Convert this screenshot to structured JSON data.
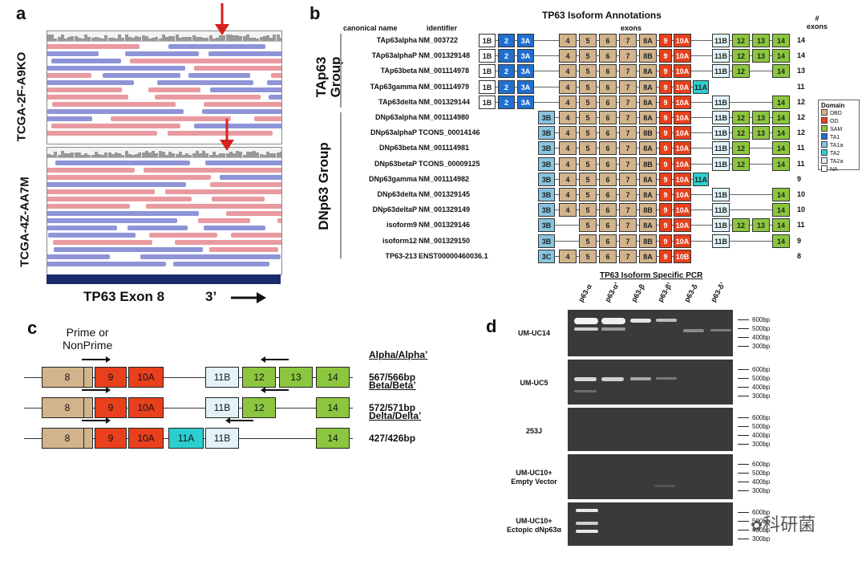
{
  "panels": {
    "a": "a",
    "b": "b",
    "c": "c",
    "d": "d"
  },
  "panel_a": {
    "sample1": "TCGA-2F-A9KO",
    "sample2": "TCGA-4Z-AA7M",
    "track_label": "TP63 Exon 8",
    "direction": "3’",
    "arrow_color": "#d62020"
  },
  "panel_b": {
    "title": "TP63 Isoform Annotations",
    "col_name": "canonical name",
    "col_id": "identifier",
    "col_exons": "exons",
    "col_count": "#\nexons",
    "group1": "TAp63\nGroup",
    "group2": "DNp63 Group",
    "rows": [
      {
        "name": "TAp63alpha",
        "id": "NM_003722",
        "exons": [
          "1B",
          "2",
          "3A",
          "4",
          "5",
          "6",
          "7",
          "8A",
          "9",
          "10A",
          "11B",
          "12",
          "13",
          "14"
        ],
        "n": "14"
      },
      {
        "name": "TAp63alphaP",
        "id": "NM_001329148",
        "exons": [
          "1B",
          "2",
          "3A",
          "4",
          "5",
          "6",
          "7",
          "8B",
          "9",
          "10A",
          "11B",
          "12",
          "13",
          "14"
        ],
        "n": "14"
      },
      {
        "name": "TAp63beta",
        "id": "NM_001114978",
        "exons": [
          "1B",
          "2",
          "3A",
          "4",
          "5",
          "6",
          "7",
          "8A",
          "9",
          "10A",
          "11B",
          "12",
          "14"
        ],
        "n": "13"
      },
      {
        "name": "TAp63gamma",
        "id": "NM_001114979",
        "exons": [
          "1B",
          "2",
          "3A",
          "4",
          "5",
          "6",
          "7",
          "8A",
          "9",
          "10A",
          "11A"
        ],
        "n": "11"
      },
      {
        "name": "TAp63delta",
        "id": "NM_001329144",
        "exons": [
          "1B",
          "2",
          "3A",
          "4",
          "5",
          "6",
          "7",
          "8A",
          "9",
          "10A",
          "11B",
          "14"
        ],
        "n": "12"
      },
      {
        "name": "DNp63alpha",
        "id": "NM_001114980",
        "exons": [
          "3B",
          "4",
          "5",
          "6",
          "7",
          "8A",
          "9",
          "10A",
          "11B",
          "12",
          "13",
          "14"
        ],
        "n": "12"
      },
      {
        "name": "DNp63alphaP",
        "id": "TCONS_00014146",
        "exons": [
          "3B",
          "4",
          "5",
          "6",
          "7",
          "8B",
          "9",
          "10A",
          "11B",
          "12",
          "13",
          "14"
        ],
        "n": "12"
      },
      {
        "name": "DNp63beta",
        "id": "NM_001114981",
        "exons": [
          "3B",
          "4",
          "5",
          "6",
          "7",
          "8A",
          "9",
          "10A",
          "11B",
          "12",
          "14"
        ],
        "n": "11"
      },
      {
        "name": "DNp63betaP",
        "id": "TCONS_00009125",
        "exons": [
          "3B",
          "4",
          "5",
          "6",
          "7",
          "8B",
          "9",
          "10A",
          "11B",
          "12",
          "14"
        ],
        "n": "11"
      },
      {
        "name": "DNp63gamma",
        "id": "NM_001114982",
        "exons": [
          "3B",
          "4",
          "5",
          "6",
          "7",
          "8A",
          "9",
          "10A",
          "11A"
        ],
        "n": "9"
      },
      {
        "name": "DNp63delta",
        "id": "NM_001329145",
        "exons": [
          "3B",
          "4",
          "5",
          "6",
          "7",
          "8A",
          "9",
          "10A",
          "11B",
          "14"
        ],
        "n": "10"
      },
      {
        "name": "DNp63deltaP",
        "id": "NM_001329149",
        "exons": [
          "3B",
          "4",
          "5",
          "6",
          "7",
          "8B",
          "9",
          "10A",
          "11B",
          "14"
        ],
        "n": "10"
      },
      {
        "name": "isoform9",
        "id": "NM_001329146",
        "exons": [
          "3B",
          "5",
          "6",
          "7",
          "8A",
          "9",
          "10A",
          "11B",
          "12",
          "13",
          "14"
        ],
        "n": "11"
      },
      {
        "name": "isoform12",
        "id": "NM_001329150",
        "exons": [
          "3B",
          "5",
          "6",
          "7",
          "8B",
          "9",
          "10A",
          "11B",
          "14"
        ],
        "n": "9"
      },
      {
        "name": "TP63-213",
        "id": "ENST00000460036.1",
        "exons": [
          "3C",
          "4",
          "5",
          "6",
          "7",
          "8A",
          "9",
          "10B"
        ],
        "n": "8"
      }
    ],
    "legend_title": "Domain",
    "legend": [
      {
        "label": "DBD",
        "color": "#d2b48c"
      },
      {
        "label": "OD",
        "color": "#e8401c"
      },
      {
        "label": "SAM",
        "color": "#8cc63f"
      },
      {
        "label": "TA1",
        "color": "#1f6fd0"
      },
      {
        "label": "TA1a",
        "color": "#87c4e0"
      },
      {
        "label": "TA2",
        "color": "#2ccfd0"
      },
      {
        "label": "TA2a",
        "color": "#e2f4f8"
      },
      {
        "label": "NA",
        "color": "#ffffff"
      }
    ]
  },
  "panel_c": {
    "prime": "Prime or\nNonPrime",
    "rows": [
      {
        "title": "Alpha/Alpha’",
        "size": "567/566bp",
        "exons": [
          "8",
          "9",
          "10A",
          "11B",
          "12",
          "13",
          "14"
        ]
      },
      {
        "title": "Beta/Beta’",
        "size": "572/571bp",
        "exons": [
          "8",
          "9",
          "10A",
          "11B",
          "12",
          "14"
        ]
      },
      {
        "title": "Delta/Delta’",
        "size": "427/426bp",
        "exons": [
          "8",
          "9",
          "10A",
          "11A",
          "11B",
          "14"
        ]
      }
    ]
  },
  "panel_d": {
    "title": "TP63 Isoform Specific PCR",
    "lanes": [
      "p63-α",
      "p63-α’",
      "p63-β",
      "p63-β’",
      "p63-δ",
      "p63-δ’"
    ],
    "ladder": [
      "600bp",
      "500bp",
      "400bp",
      "300bp"
    ],
    "gels": [
      {
        "label": "UM-UC14"
      },
      {
        "label": "UM-UC5"
      },
      {
        "label": "253J"
      },
      {
        "label": "UM-UC10+\nEmpty Vector"
      },
      {
        "label": "UM-UC10+\nEctopic dNp63α"
      }
    ]
  },
  "watermark": "科研菌"
}
